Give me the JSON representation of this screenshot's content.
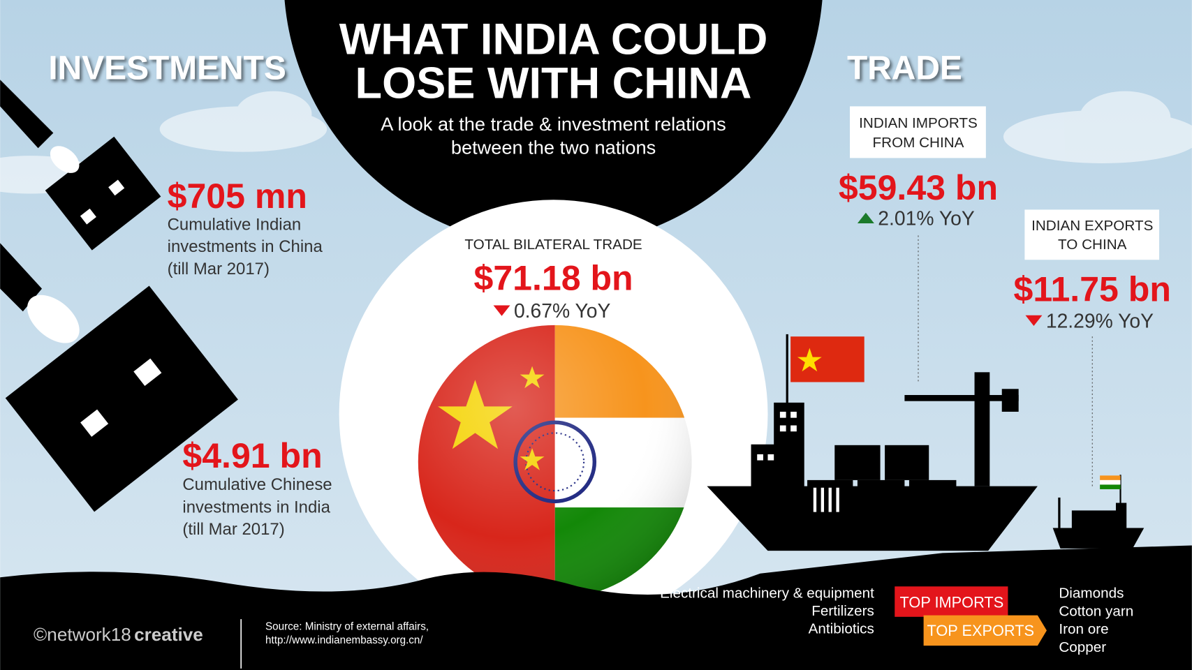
{
  "title": {
    "lines": [
      "WHAT INDIA COULD",
      "LOSE WITH CHINA"
    ]
  },
  "subtitle": {
    "lines": [
      "A look at the trade & investment relations",
      "between the two nations"
    ]
  },
  "investments": {
    "heading": "INVESTMENTS",
    "items": [
      {
        "value": "$705 mn",
        "description": [
          "Cumulative Indian",
          "investments in China",
          "(till Mar 2017)"
        ]
      },
      {
        "value": "$4.91 bn",
        "description": [
          "Cumulative Chinese",
          "investments in India",
          "(till Mar 2017)"
        ]
      }
    ]
  },
  "trade": {
    "heading": "TRADE",
    "total": {
      "label": "TOTAL BILATERAL TRADE",
      "value": "$71.18 bn",
      "change": "0.67% YoY",
      "direction": "down"
    },
    "imports": {
      "label": [
        "INDIAN IMPORTS",
        "FROM CHINA"
      ],
      "value": "$59.43 bn",
      "change": "2.01% YoY",
      "direction": "up"
    },
    "exports": {
      "label": [
        "INDIAN EXPORTS",
        "TO CHINA"
      ],
      "value": "$11.75 bn",
      "change": "12.29% YoY",
      "direction": "down"
    },
    "top_imports": {
      "label": "TOP IMPORTS",
      "items": [
        "Electrical machinery & equipment",
        "Fertilizers",
        "Antibiotics"
      ]
    },
    "top_exports": {
      "label": "TOP EXPORTS",
      "items": [
        "Diamonds",
        "Cotton yarn",
        "Iron ore",
        "Copper"
      ]
    }
  },
  "footer": {
    "brand": "©network18",
    "brand_bold": "creative",
    "source": [
      "Source: Ministry of external affairs,",
      "http://www.indianembassy.org.cn/"
    ]
  }
}
